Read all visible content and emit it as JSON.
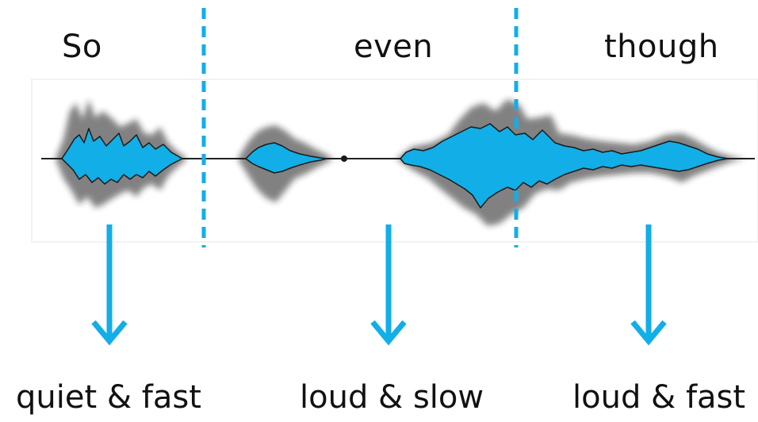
{
  "words": [
    {
      "id": "so",
      "text": "So"
    },
    {
      "id": "even",
      "text": "even"
    },
    {
      "id": "though",
      "text": "though"
    }
  ],
  "descriptions": [
    {
      "id": "so",
      "text": "quiet & fast"
    },
    {
      "id": "even",
      "text": "loud & slow"
    },
    {
      "id": "though",
      "text": "loud & fast"
    }
  ],
  "colors": {
    "accent": "#12aee8",
    "waveform_fill": "#12aee8",
    "waveform_shadow": "#1a1a1a",
    "text": "#111111"
  }
}
